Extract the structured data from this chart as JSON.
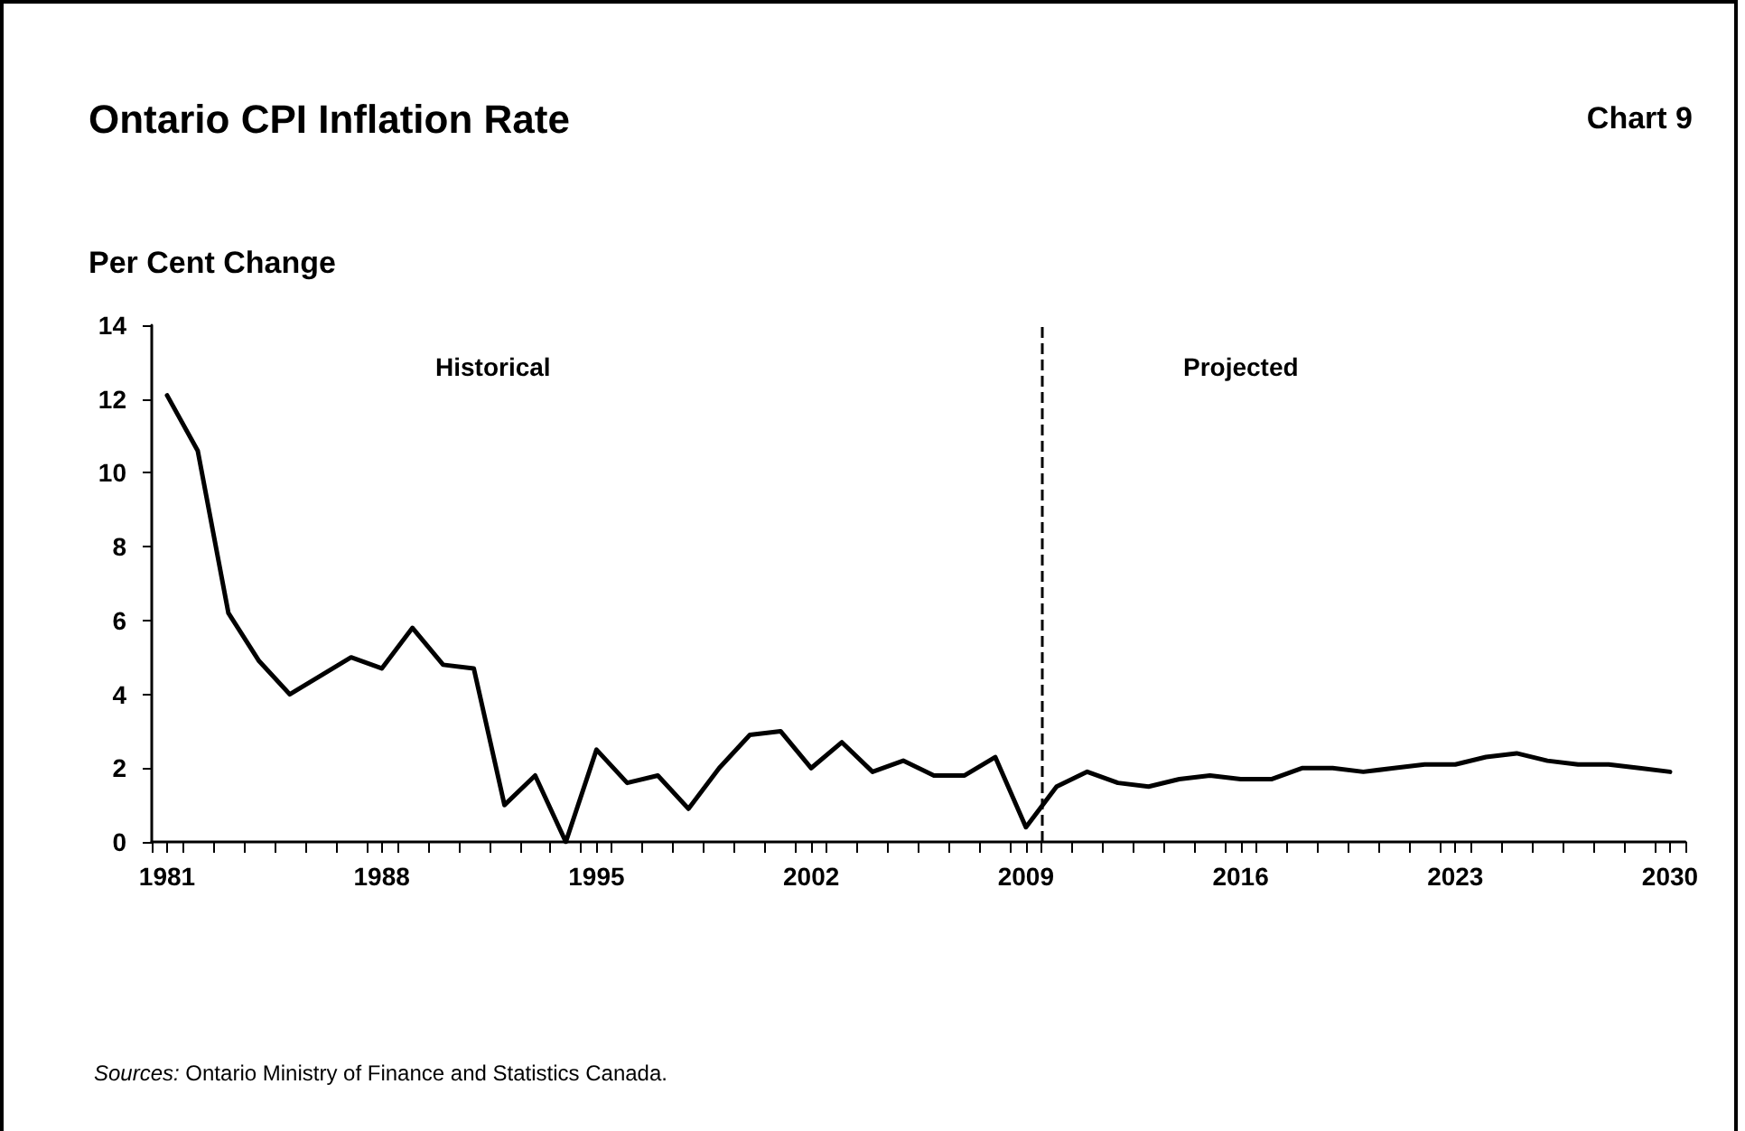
{
  "chart_data": {
    "type": "line",
    "title": "Ontario CPI Inflation Rate",
    "subtitle": "Chart 9",
    "ylabel": "Per Cent Change",
    "x": [
      1981,
      1982,
      1983,
      1984,
      1985,
      1986,
      1987,
      1988,
      1989,
      1990,
      1991,
      1992,
      1993,
      1994,
      1995,
      1996,
      1997,
      1998,
      1999,
      2000,
      2001,
      2002,
      2003,
      2004,
      2005,
      2006,
      2007,
      2008,
      2009,
      2010,
      2011,
      2012,
      2013,
      2014,
      2015,
      2016,
      2017,
      2018,
      2019,
      2020,
      2021,
      2022,
      2023,
      2024,
      2025,
      2026,
      2027,
      2028,
      2029,
      2030
    ],
    "series": [
      {
        "color": "#000000",
        "values": [
          12.1,
          10.6,
          6.2,
          4.9,
          4.0,
          4.5,
          5.0,
          4.7,
          5.8,
          4.8,
          4.7,
          1.0,
          1.8,
          0.0,
          2.5,
          1.6,
          1.8,
          0.9,
          2.0,
          2.9,
          3.0,
          2.0,
          2.7,
          1.9,
          2.2,
          1.8,
          1.8,
          2.3,
          0.4,
          1.5,
          1.9,
          1.6,
          1.5,
          1.7,
          1.8,
          1.7,
          1.7,
          2.0,
          2.0,
          1.9,
          2.0,
          2.1,
          2.1,
          2.3,
          2.4,
          2.2,
          2.1,
          2.1,
          2.0,
          1.9
        ]
      }
    ],
    "xlim": [
      1980.5,
      2030.5
    ],
    "xticks": [
      {
        "value": 1980.5,
        "label": null
      },
      1981,
      {
        "value": 1981.5,
        "label": null
      },
      {
        "value": 1982.5,
        "label": null
      },
      {
        "value": 1983.5,
        "label": null
      },
      {
        "value": 1984.5,
        "label": null
      },
      {
        "value": 1985.5,
        "label": null
      },
      {
        "value": 1986.5,
        "label": null
      },
      {
        "value": 1987.5,
        "label": null
      },
      1988,
      {
        "value": 1988.5,
        "label": null
      },
      {
        "value": 1989.5,
        "label": null
      },
      {
        "value": 1990.5,
        "label": null
      },
      {
        "value": 1991.5,
        "label": null
      },
      {
        "value": 1992.5,
        "label": null
      },
      {
        "value": 1993.5,
        "label": null
      },
      {
        "value": 1994.5,
        "label": null
      },
      1995,
      {
        "value": 1995.5,
        "label": null
      },
      {
        "value": 1996.5,
        "label": null
      },
      {
        "value": 1997.5,
        "label": null
      },
      {
        "value": 1998.5,
        "label": null
      },
      {
        "value": 1999.5,
        "label": null
      },
      {
        "value": 2000.5,
        "label": null
      },
      {
        "value": 2001.5,
        "label": null
      },
      2002,
      {
        "value": 2002.5,
        "label": null
      },
      {
        "value": 2003.5,
        "label": null
      },
      {
        "value": 2004.5,
        "label": null
      },
      {
        "value": 2005.5,
        "label": null
      },
      {
        "value": 2006.5,
        "label": null
      },
      {
        "value": 2007.5,
        "label": null
      },
      {
        "value": 2008.5,
        "label": null
      },
      2009,
      {
        "value": 2009.5,
        "label": null
      },
      {
        "value": 2010.5,
        "label": null
      },
      {
        "value": 2011.5,
        "label": null
      },
      {
        "value": 2012.5,
        "label": null
      },
      {
        "value": 2013.5,
        "label": null
      },
      {
        "value": 2014.5,
        "label": null
      },
      {
        "value": 2015.5,
        "label": null
      },
      2016,
      {
        "value": 2016.5,
        "label": null
      },
      {
        "value": 2017.5,
        "label": null
      },
      {
        "value": 2018.5,
        "label": null
      },
      {
        "value": 2019.5,
        "label": null
      },
      {
        "value": 2020.5,
        "label": null
      },
      {
        "value": 2021.5,
        "label": null
      },
      {
        "value": 2022.5,
        "label": null
      },
      2023,
      {
        "value": 2023.5,
        "label": null
      },
      {
        "value": 2024.5,
        "label": null
      },
      {
        "value": 2025.5,
        "label": null
      },
      {
        "value": 2026.5,
        "label": null
      },
      {
        "value": 2027.5,
        "label": null
      },
      {
        "value": 2028.5,
        "label": null
      },
      {
        "value": 2029.5,
        "label": null
      },
      2030,
      {
        "value": 2030.5,
        "label": null
      }
    ],
    "ylim": [
      0,
      14
    ],
    "yticks": [
      0,
      2,
      4,
      6,
      8,
      10,
      12,
      14
    ],
    "ref_lines": [
      {
        "axis": "x",
        "value": 2009.5,
        "line_style": "dashed",
        "color": "#000000"
      }
    ],
    "annotations": [
      "Historical",
      "Projected",
      "Sources: Ontario Ministry of Finance and Statistics Canada."
    ],
    "grid": false,
    "marker": "none",
    "line_style": "solid"
  }
}
